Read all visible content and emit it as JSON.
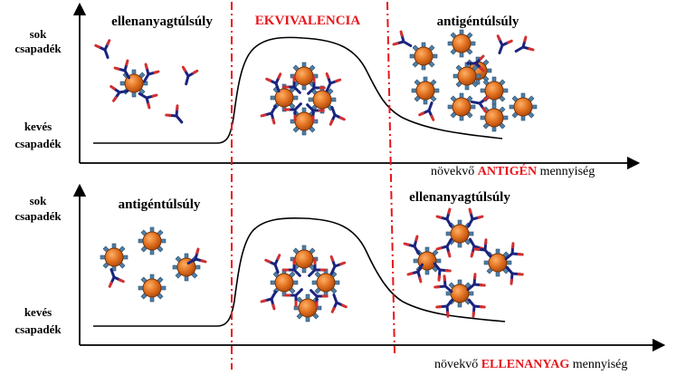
{
  "colors": {
    "divider": "#e8151b",
    "antigen_fill": "#e0701f",
    "antibody_arm": "#1a237e",
    "antibody_tip": "#d32f2f",
    "epitope": "#4f7fa6"
  },
  "panels": [
    {
      "y_top": "sok",
      "y_top2": "csapadék",
      "y_bottom": "kevés",
      "y_bottom2": "csapadék",
      "region_left": "ellenanyagtúlsúly",
      "region_middle": "EKVIVALENCIA",
      "region_right": "antigéntúlsúly",
      "x_axis_prefix": "növekvő",
      "x_axis_highlight": "ANTIGÉN",
      "x_axis_suffix": "mennyiség"
    },
    {
      "y_top": "sok",
      "y_top2": "csapadék",
      "y_bottom": "kevés",
      "y_bottom2": "csapadék",
      "region_left": "antigéntúlsúly",
      "region_right": "ellenanyagtúlsúly",
      "x_axis_prefix": "növekvő",
      "x_axis_highlight": "ELLENANYAG",
      "x_axis_suffix": "mennyiség"
    }
  ]
}
